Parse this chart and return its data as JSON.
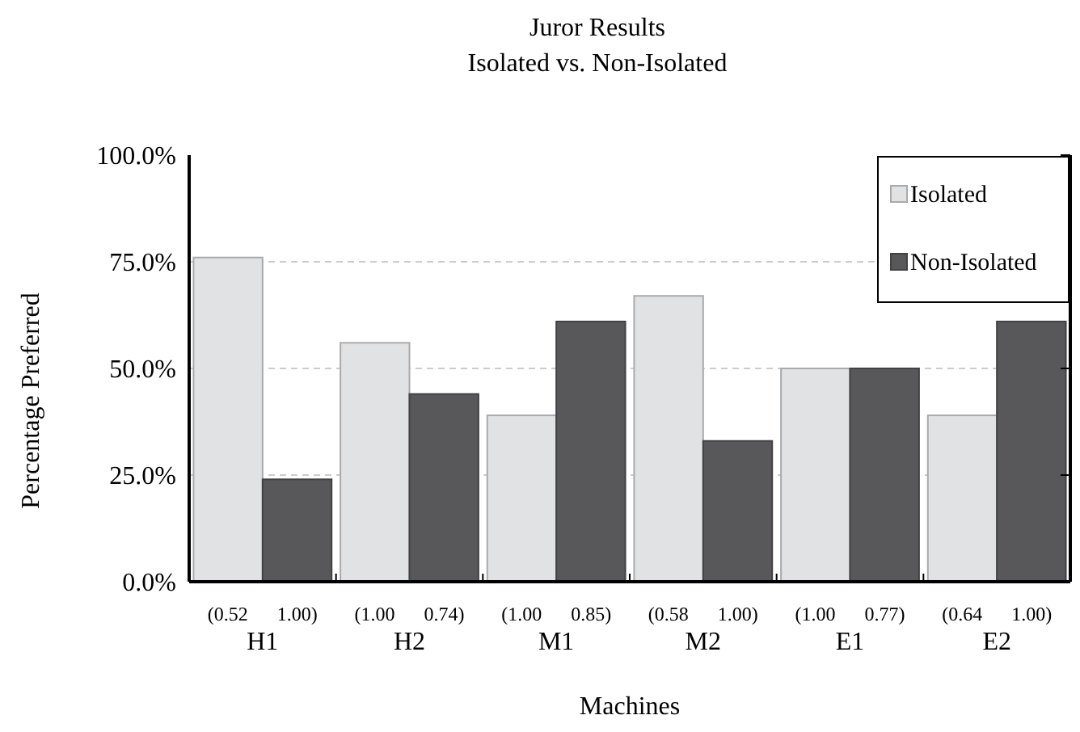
{
  "chart_data": {
    "type": "bar",
    "title": "Juror Results",
    "subtitle": "Isolated vs. Non-Isolated",
    "xlabel": "Machines",
    "ylabel": "Percentage Preferred",
    "categories": [
      "H1",
      "H2",
      "M1",
      "M2",
      "E1",
      "E2"
    ],
    "series": [
      {
        "name": "Isolated",
        "color": "#e1e2e4",
        "values": [
          76,
          56,
          39,
          67,
          50,
          39
        ]
      },
      {
        "name": "Non-Isolated",
        "color": "#58585a",
        "values": [
          24,
          44,
          61,
          33,
          50,
          61
        ]
      }
    ],
    "ylim": [
      0,
      100
    ],
    "yticks": [
      {
        "value": 0,
        "label": "0.0%"
      },
      {
        "value": 25,
        "label": "25.0%"
      },
      {
        "value": 50,
        "label": "50.0%"
      },
      {
        "value": 75,
        "label": "75.0%"
      },
      {
        "value": 100,
        "label": "100.0%"
      }
    ],
    "grid": "y",
    "legend": "top right",
    "annotations": [
      "(0.52      1.00)",
      "(1.00      0.74)",
      "(1.00      0.85)",
      "(0.58      1.00)",
      "(1.00      0.77)",
      "(0.64      1.00)"
    ]
  }
}
